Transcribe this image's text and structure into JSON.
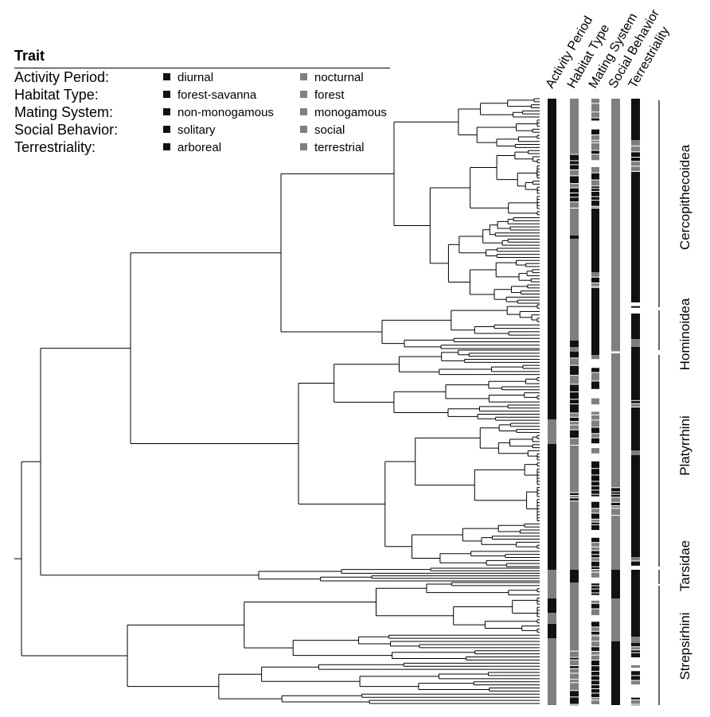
{
  "legend": {
    "title": "Trait",
    "rows": [
      {
        "trait": "Activity Period:",
        "a": "diurnal",
        "b": "nocturnal"
      },
      {
        "trait": "Habitat Type:",
        "a": "forest-savanna",
        "b": "forest"
      },
      {
        "trait": "Mating System:",
        "a": "non-monogamous",
        "b": "monogamous"
      },
      {
        "trait": "Social Behavior:",
        "a": "solitary",
        "b": "social"
      },
      {
        "trait": "Terrestriality:",
        "a": "arboreal",
        "b": "terrestrial"
      }
    ]
  },
  "colors": {
    "state_a": "#111111",
    "state_b": "#7f7f7f",
    "tree": "#000000"
  },
  "columns": [
    "Activity Period",
    "Habitat Type",
    "Mating System",
    "Social Behavior",
    "Terrestriality"
  ],
  "clades": [
    "Cercopithecoidea",
    "Hominoidea",
    "Platyrrhini",
    "Tarsidae",
    "Strepsirhini"
  ]
}
